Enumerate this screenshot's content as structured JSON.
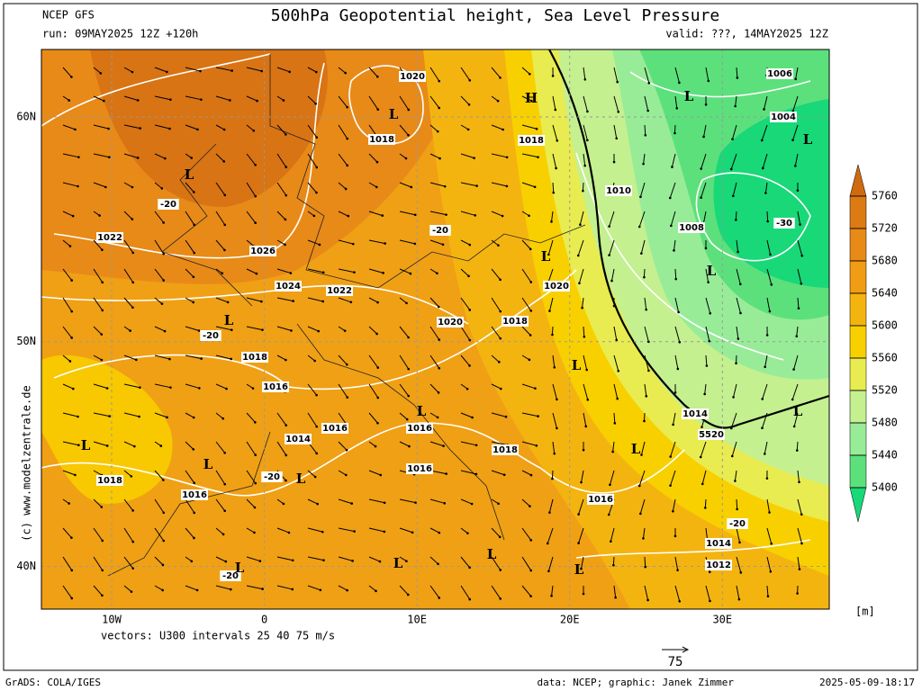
{
  "header": {
    "model": "NCEP GFS",
    "run": "run: 09MAY2025 12Z +120h",
    "title": "500hPa Geopotential height, Sea Level Pressure",
    "valid": "valid: ???, 14MAY2025 12Z"
  },
  "map": {
    "xlim": [
      -14.6,
      37
    ],
    "ylim": [
      38.1,
      63
    ],
    "lon_ticks": [
      {
        "value": -10,
        "label": "10W"
      },
      0,
      {
        "value": 10,
        "label": "10E"
      },
      {
        "value": 20,
        "label": "20E"
      },
      {
        "value": 30,
        "label": "30E"
      }
    ],
    "lat_ticks": [
      {
        "value": 60,
        "label": "60N"
      },
      {
        "value": 50,
        "label": "50N"
      },
      {
        "value": 40,
        "label": "40N"
      }
    ],
    "contour_labels": [
      "1020",
      "1018",
      "1018",
      "1022",
      "1026",
      "1024",
      "1022",
      "1020",
      "1018",
      "1020",
      "1018",
      "1016",
      "1016",
      "1016",
      "1014",
      "1016",
      "1018",
      "1016",
      "1018",
      "1016",
      "1010",
      "1008",
      "1006",
      "1004",
      "1014",
      "5520",
      "1014",
      "1012",
      "-20",
      "-20",
      "-20",
      "-20",
      "-20",
      "-20",
      "-30"
    ],
    "pressure_centers": [
      "H",
      "L",
      "L",
      "L",
      "L",
      "L",
      "L",
      "L",
      "L",
      "L",
      "L",
      "L",
      "L",
      "L",
      "L",
      "L",
      "L",
      "L",
      "L"
    ]
  },
  "colorbar": {
    "ticks": [
      5760,
      5720,
      5680,
      5640,
      5600,
      5560,
      5520,
      5480,
      5440,
      5400
    ],
    "unit": "[m]",
    "colors": [
      "#d06a10",
      "#dc7a14",
      "#e88a18",
      "#f09c14",
      "#f4b410",
      "#f8d000",
      "#e8ec50",
      "#c4f090",
      "#98ec98",
      "#5ce07c",
      "#18d878"
    ]
  },
  "credit": "(c) www.modelzentrale.de",
  "footer": {
    "vectors": "vectors: U300 intervals 25 40 75 m/s",
    "ref_vector": "75",
    "software": "GrADS: COLA/IGES",
    "data": "data: NCEP; graphic: Janek Zimmer",
    "timestamp": "2025-05-09-18:17"
  }
}
